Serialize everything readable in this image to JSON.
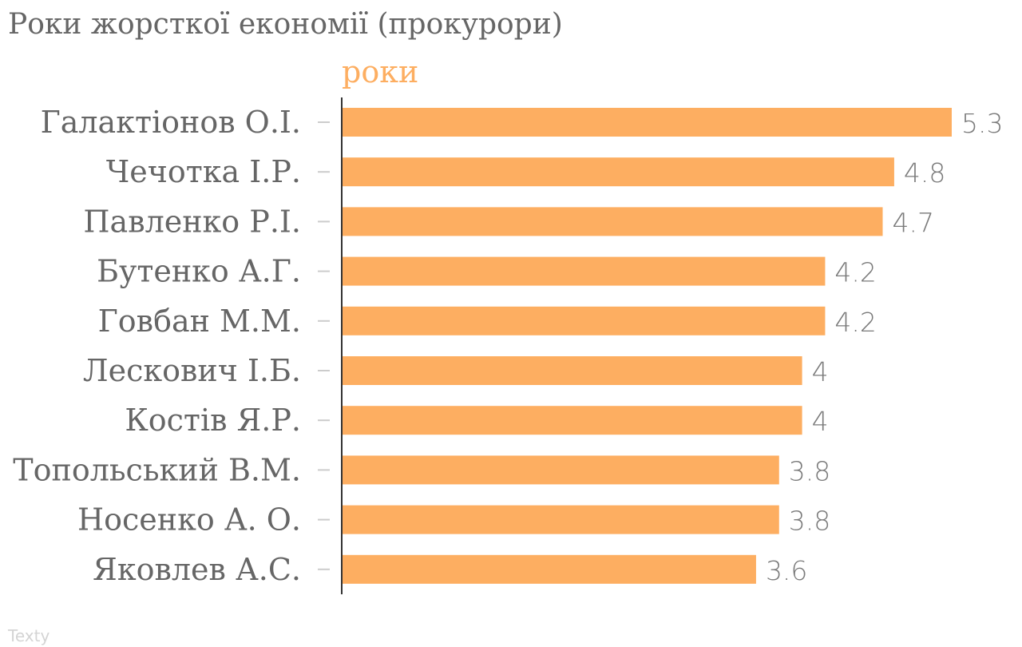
{
  "chart_title": "Роки жорсткої економії (прокурори)",
  "source_label": "Texty",
  "colors": {
    "bar": "#fdae61",
    "text": "#666666",
    "axis": "#333333",
    "tick": "#cccccc",
    "value_text": "#7a7a7a"
  },
  "chart_data": {
    "type": "bar",
    "orientation": "horizontal",
    "title": "Роки жорсткої економії (прокурори)",
    "xlabel": "",
    "ylabel": "",
    "grid": false,
    "legend": "none",
    "categories": [
      "Галактіонов О.І.",
      "Чечотка І.Р.",
      "Павленко Р.І.",
      "Бутенко А.Г.",
      "Говбан М.М.",
      "Лескович І.Б.",
      "Костів Я.Р.",
      "Топольський В.М.",
      "Носенко А. О.",
      "Яковлев А.С."
    ],
    "series": [
      {
        "name": "роки",
        "values": [
          5.3,
          4.8,
          4.7,
          4.2,
          4.2,
          4,
          4,
          3.8,
          3.8,
          3.6
        ]
      }
    ],
    "value_labels": [
      "5.3",
      "4.8",
      "4.7",
      "4.2",
      "4.2",
      "4",
      "4",
      "3.8",
      "3.8",
      "3.6"
    ],
    "xlim": [
      0,
      5.3
    ]
  }
}
